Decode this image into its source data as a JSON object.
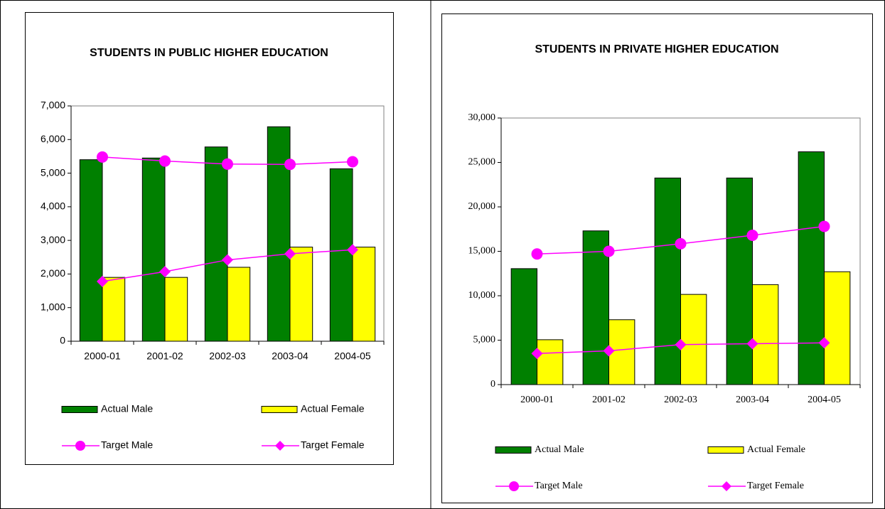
{
  "chart_data": [
    {
      "type": "bar",
      "title": "STUDENTS IN PUBLIC HIGHER EDUCATION",
      "categories": [
        "2000-01",
        "2001-02",
        "2002-03",
        "2003-04",
        "2004-05"
      ],
      "ylim": [
        0,
        7000
      ],
      "yticks": [
        0,
        {
          "value": 1000,
          "label": "1,000"
        },
        {
          "value": 2000,
          "label": "2,000"
        },
        {
          "value": 3000,
          "label": "3,000"
        },
        {
          "value": 4000,
          "label": "4,000"
        },
        {
          "value": 5000,
          "label": "5,000"
        },
        {
          "value": 6000,
          "label": "6,000"
        },
        {
          "value": 7000,
          "label": "7,000"
        }
      ],
      "series": [
        {
          "name": "Actual Male",
          "type": "bar",
          "color": "#008000",
          "values": [
            5400,
            5450,
            5780,
            6380,
            5130
          ]
        },
        {
          "name": "Actual Female",
          "type": "bar",
          "color": "#ffff00",
          "values": [
            1900,
            1900,
            2200,
            2800,
            2800
          ]
        },
        {
          "name": "Target Male",
          "type": "line",
          "marker": "circle",
          "color": "#ff00ff",
          "values": [
            5480,
            5360,
            5270,
            5260,
            5340
          ]
        },
        {
          "name": "Target Female",
          "type": "line",
          "marker": "diamond",
          "color": "#ff00ff",
          "values": [
            1780,
            2070,
            2420,
            2600,
            2720
          ]
        }
      ]
    },
    {
      "type": "bar",
      "title": "STUDENTS IN PRIVATE HIGHER EDUCATION",
      "categories": [
        "2000-01",
        "2001-02",
        "2002-03",
        "2003-04",
        "2004-05"
      ],
      "ylim": [
        0,
        30000
      ],
      "yticks": [
        0,
        {
          "value": 5000,
          "label": "5,000"
        },
        {
          "value": 10000,
          "label": "10,000"
        },
        {
          "value": 15000,
          "label": "15,000"
        },
        {
          "value": 20000,
          "label": "20,000"
        },
        {
          "value": 25000,
          "label": "25,000"
        },
        {
          "value": 30000,
          "label": "30,000"
        }
      ],
      "series": [
        {
          "name": "Actual Male",
          "type": "bar",
          "color": "#008000",
          "values": [
            13050,
            17300,
            23250,
            23250,
            26200
          ]
        },
        {
          "name": "Actual Female",
          "type": "bar",
          "color": "#ffff00",
          "values": [
            5050,
            7300,
            10150,
            11250,
            12700
          ]
        },
        {
          "name": "Target Male",
          "type": "line",
          "marker": "circle",
          "color": "#ff00ff",
          "values": [
            14700,
            15000,
            15850,
            16800,
            17800
          ]
        },
        {
          "name": "Target Female",
          "type": "line",
          "marker": "diamond",
          "color": "#ff00ff",
          "values": [
            3500,
            3800,
            4500,
            4600,
            4700
          ]
        }
      ]
    }
  ]
}
